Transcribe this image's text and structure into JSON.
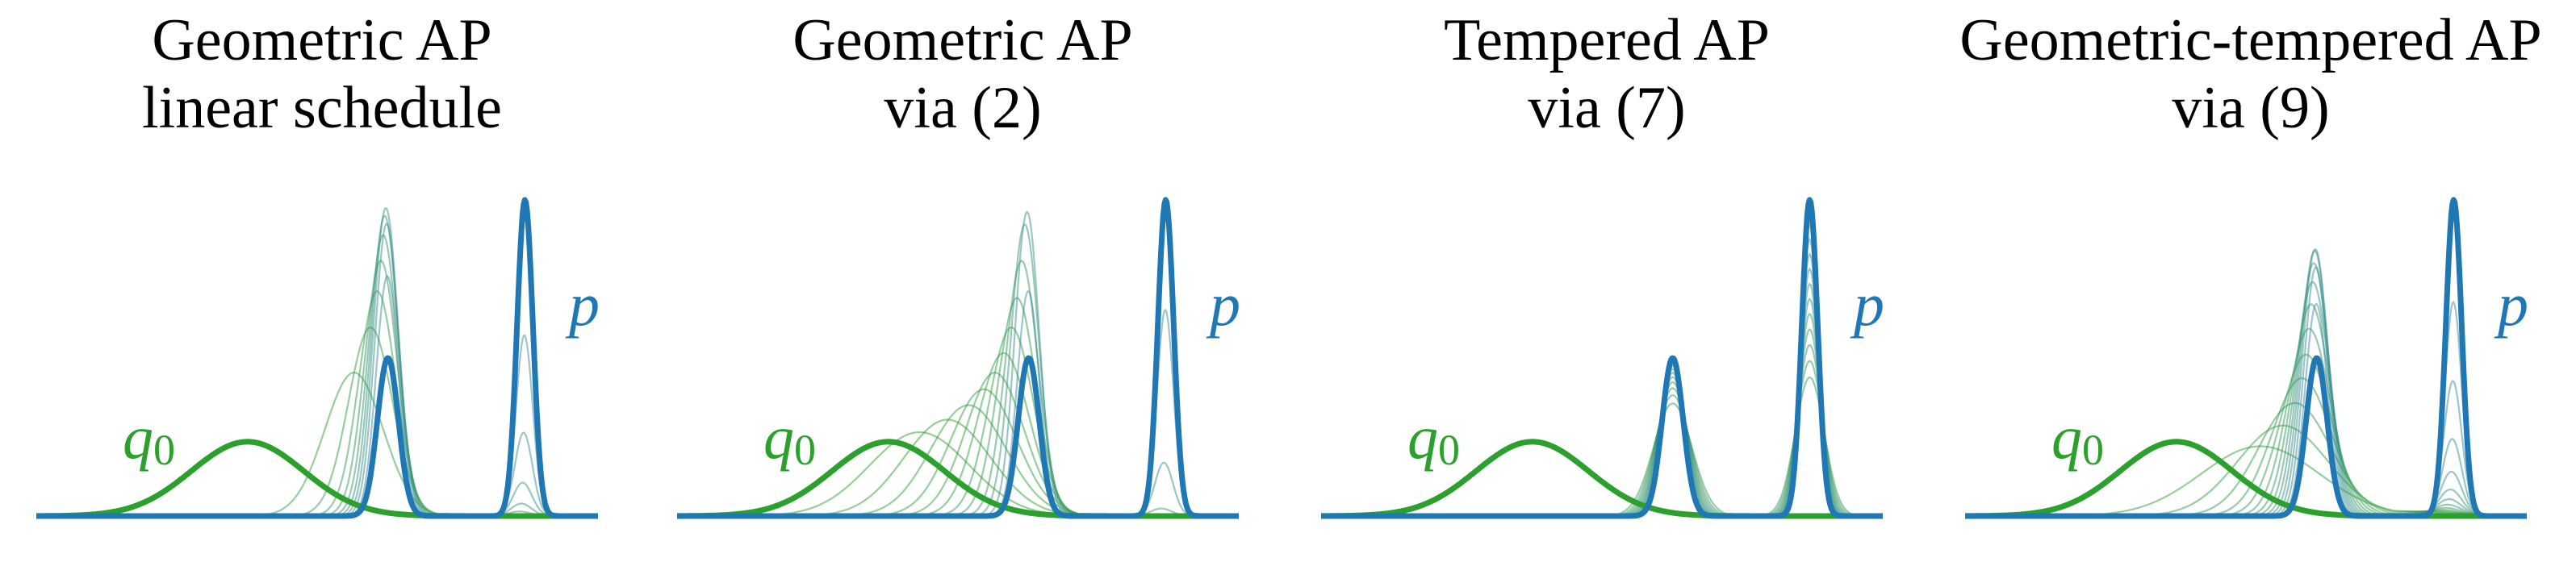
{
  "chart_data": {
    "type": "line",
    "x_domain": [
      0,
      10
    ],
    "colors": {
      "q0": "#2ca02c",
      "p": "#1f77b4"
    },
    "distributions": {
      "q0": {
        "kind": "gaussian",
        "mean": 3.76,
        "sd": 1.0
      },
      "p": {
        "kind": "mixture",
        "components": [
          {
            "weight": 0.4,
            "mean": 6.26,
            "sd": 0.188
          },
          {
            "weight": 0.6,
            "mean": 8.7,
            "sd": 0.141
          }
        ]
      }
    },
    "labels": {
      "q": "q",
      "q_sub": "0",
      "p": "p"
    },
    "panels": [
      {
        "title_line1": "Geometric AP",
        "title_line2": "linear schedule",
        "path": "geometric",
        "betas": [
          0.1,
          0.2,
          0.3,
          0.4,
          0.5,
          0.6,
          0.7,
          0.8,
          0.9
        ]
      },
      {
        "title_line1": "Geometric AP",
        "title_line2": "via (2)",
        "path": "geometric",
        "betas": [
          0.01,
          0.025,
          0.045,
          0.07,
          0.1,
          0.14,
          0.2,
          0.28,
          0.4,
          0.55,
          0.75,
          0.92
        ]
      },
      {
        "title_line1": "Tempered AP",
        "title_line2": "via (7)",
        "path": "tempered",
        "betas": [
          0.3,
          0.36,
          0.42,
          0.48,
          0.54,
          0.6,
          0.66,
          0.72,
          0.78,
          0.84,
          0.9,
          0.96
        ]
      },
      {
        "title_line1": "Geometric-tempered AP",
        "title_line2": "via (9)",
        "path": "geometric-tempered",
        "betas": [
          0.05,
          0.1,
          0.16,
          0.23,
          0.3,
          0.38,
          0.46,
          0.54,
          0.62,
          0.7,
          0.78,
          0.86,
          0.93
        ]
      }
    ]
  }
}
